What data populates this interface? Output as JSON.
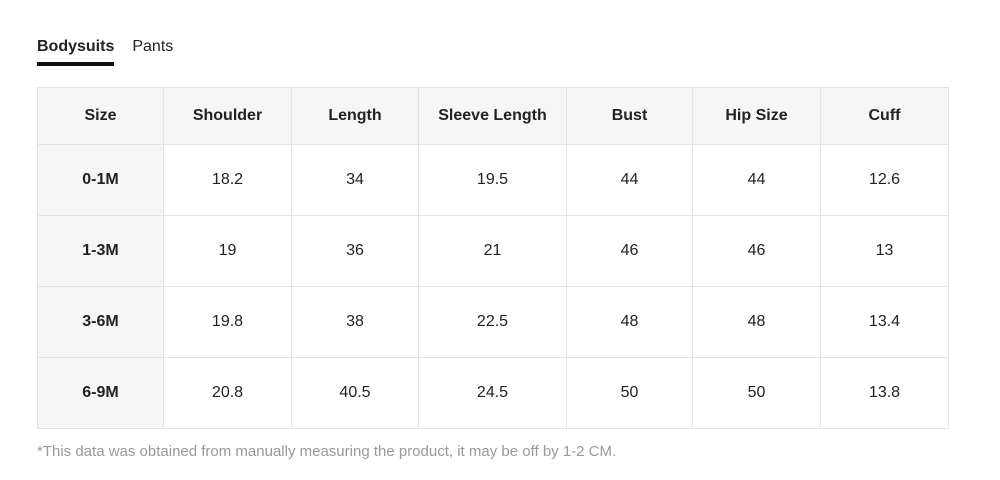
{
  "tabs": [
    {
      "label": "Bodysuits",
      "active": true
    },
    {
      "label": "Pants",
      "active": false
    }
  ],
  "table": {
    "headers": [
      "Size",
      "Shoulder",
      "Length",
      "Sleeve Length",
      "Bust",
      "Hip Size",
      "Cuff"
    ],
    "rows": [
      [
        "0-1M",
        "18.2",
        "34",
        "19.5",
        "44",
        "44",
        "12.6"
      ],
      [
        "1-3M",
        "19",
        "36",
        "21",
        "46",
        "46",
        "13"
      ],
      [
        "3-6M",
        "19.8",
        "38",
        "22.5",
        "48",
        "48",
        "13.4"
      ],
      [
        "6-9M",
        "20.8",
        "40.5",
        "24.5",
        "50",
        "50",
        "13.8"
      ]
    ]
  },
  "note": "*This data was obtained from manually measuring the product, it may be off by 1-2 CM."
}
